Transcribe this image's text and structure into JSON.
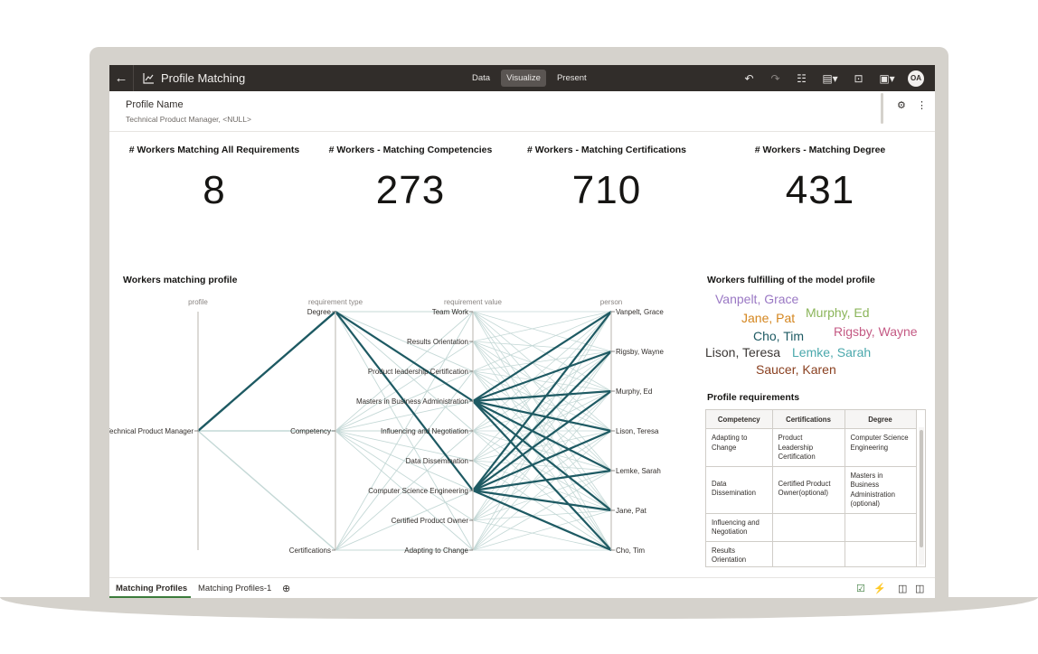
{
  "app": {
    "back_icon": "back-arrow-icon",
    "title": "Profile Matching",
    "modes": [
      "Data",
      "Visualize",
      "Present"
    ],
    "active_mode": "Visualize",
    "user_initials": "OA"
  },
  "filter": {
    "name": "Profile Name",
    "value": "Technical Product Manager, <NULL>"
  },
  "kpis": [
    {
      "label": "# Workers Matching All Requirements",
      "value": "8"
    },
    {
      "label": "# Workers - Matching Competencies",
      "value": "273"
    },
    {
      "label": "# Workers - Matching Certifications",
      "value": "710"
    },
    {
      "label": "# Workers - Matching Degree",
      "value": "431"
    }
  ],
  "parallel": {
    "title": "Workers matching profile",
    "axes": [
      "profile",
      "requirement type",
      "requirement value",
      "person"
    ]
  },
  "chart_data": {
    "type": "parallel-coordinates",
    "title": "Workers matching profile",
    "dimensions": [
      "profile",
      "requirement type",
      "requirement value",
      "person"
    ],
    "categories": {
      "profile": [
        "Technical Product Manager"
      ],
      "requirement type": [
        "Degree",
        "Competency",
        "Certifications"
      ],
      "requirement value": [
        "Team Work",
        "Results Orientation",
        "Product leadership Certification",
        "Masters in Business Administration",
        "Influencing and Negotiation",
        "Data Dissemination",
        "Computer Science Engineering",
        "Certified Product Owner",
        "Adapting to Change"
      ],
      "person": [
        "Vanpelt, Grace",
        "Rigsby, Wayne",
        "Murphy, Ed",
        "Lison, Teresa",
        "Lemke, Sarah",
        "Jane, Pat",
        "Cho, Tim"
      ]
    },
    "highlighted_paths": [
      [
        "Technical Product Manager",
        "Degree",
        "Masters in Business Administration"
      ],
      [
        "Technical Product Manager",
        "Degree",
        "Computer Science Engineering"
      ]
    ],
    "highlighted_persons": [
      "Vanpelt, Grace",
      "Rigsby, Wayne",
      "Murphy, Ed",
      "Lison, Teresa",
      "Lemke, Sarah",
      "Jane, Pat",
      "Cho, Tim"
    ],
    "colors": {
      "highlight": "#1e5a63",
      "muted": "#c4d8d6"
    }
  },
  "cloud": {
    "title": "Workers fulfilling of the model profile",
    "words": [
      {
        "text": "Vanpelt, Grace",
        "color": "#9a78c4"
      },
      {
        "text": "Jane, Pat",
        "color": "#d4861f"
      },
      {
        "text": "Murphy, Ed",
        "color": "#8bb55a"
      },
      {
        "text": "Cho, Tim",
        "color": "#1e5a63"
      },
      {
        "text": "Rigsby, Wayne",
        "color": "#c45a84"
      },
      {
        "text": "Lison, Teresa",
        "color": "#3b3735"
      },
      {
        "text": "Lemke, Sarah",
        "color": "#4aa8ac"
      },
      {
        "text": "Saucer, Karen",
        "color": "#8a4020"
      }
    ]
  },
  "requirements": {
    "title": "Profile requirements",
    "columns": [
      "Competency",
      "Certifications",
      "Degree"
    ],
    "rows": [
      [
        "Adapting to Change",
        "Product Leadership Certification",
        "Computer Science Engineering"
      ],
      [
        "Data Dissemination",
        "Certified Product Owner(optional)",
        "Masters in Business Administration (optional)"
      ],
      [
        "Influencing and Negotiation",
        "",
        ""
      ],
      [
        "Results Orientation",
        "",
        ""
      ]
    ]
  },
  "footer": {
    "tabs": [
      "Matching Profiles",
      "Matching Profiles-1"
    ],
    "active_tab": "Matching Profiles"
  }
}
